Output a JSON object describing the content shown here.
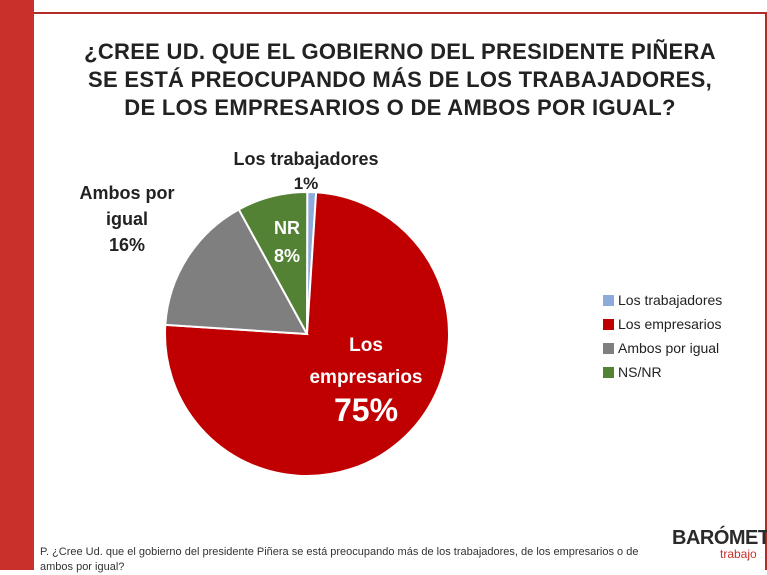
{
  "title_lines": [
    "¿CREE UD. QUE EL GOBIERNO DEL PRESIDENTE PIÑERA",
    "SE ESTÁ PREOCUPANDO MÁS DE LOS TRABAJADORES,",
    "DE LOS EMPRESARIOS O DE AMBOS POR IGUAL?"
  ],
  "chart_data": {
    "type": "pie",
    "title": "¿CREE UD. QUE EL GOBIERNO DEL PRESIDENTE PIÑERA SE ESTÁ PREOCUPANDO MÁS DE LOS TRABAJADORES, DE LOS EMPRESARIOS O DE AMBOS POR IGUAL?",
    "slices": [
      {
        "legend": "Los trabajadores",
        "value": 1,
        "label_lines": [
          "Los trabajadores",
          "1%"
        ],
        "color": "#8eaadb"
      },
      {
        "legend": "Los empresarios",
        "value": 75,
        "label_lines": [
          "Los",
          "empresarios",
          "75%"
        ],
        "color": "#c00000"
      },
      {
        "legend": "Ambos por igual",
        "value": 16,
        "label_lines": [
          "Ambos por",
          "igual",
          "16%"
        ],
        "color": "#7f7f7f"
      },
      {
        "legend": "NS/NR",
        "value": 8,
        "label_lines": [
          "NR",
          "8%"
        ],
        "color": "#548235"
      }
    ],
    "legend_position": "right"
  },
  "legend": [
    {
      "label": "Los trabajadores",
      "color": "#8eaadb"
    },
    {
      "label": "Los empresarios",
      "color": "#c00000"
    },
    {
      "label": "Ambos por igual",
      "color": "#7f7f7f"
    },
    {
      "label": "NS/NR",
      "color": "#548235"
    }
  ],
  "footnote": "P. ¿Cree Ud. que el gobierno del presidente Piñera se está preocupando más de los trabajadores, de los empresarios o de ambos por igual?",
  "logo": {
    "main": "BARÓMETRO",
    "sub": "trabajo"
  }
}
